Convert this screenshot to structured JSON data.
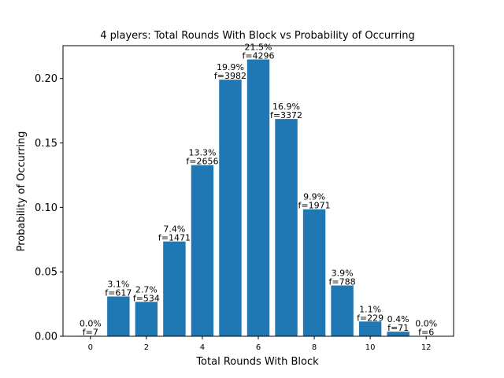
{
  "chart_data": {
    "type": "bar",
    "title": "4 players: Total Rounds With Block vs Probability of Occurring",
    "xlabel": "Total Rounds With Block",
    "ylabel": "Probability of Occurring",
    "x": [
      0,
      1,
      2,
      3,
      4,
      5,
      6,
      7,
      8,
      9,
      10,
      11,
      12
    ],
    "values": [
      0.00035,
      0.03085,
      0.0267,
      0.07355,
      0.1328,
      0.1991,
      0.2148,
      0.1686,
      0.09855,
      0.0394,
      0.01145,
      0.00355,
      0.0003
    ],
    "bar_labels": [
      [
        "0.0%",
        "f=7"
      ],
      [
        "3.1%",
        "f=617"
      ],
      [
        "2.7%",
        "f=534"
      ],
      [
        "7.4%",
        "f=1471"
      ],
      [
        "13.3%",
        "f=2656"
      ],
      [
        "19.9%",
        "f=3982"
      ],
      [
        "21.5%",
        "f=4296"
      ],
      [
        "16.9%",
        "f=3372"
      ],
      [
        "9.9%",
        "f=1971"
      ],
      [
        "3.9%",
        "f=788"
      ],
      [
        "1.1%",
        "f=229"
      ],
      [
        "0.4%",
        "f=71"
      ],
      [
        "0.0%",
        "f=6"
      ]
    ],
    "xticks": [
      0,
      2,
      4,
      6,
      8,
      10,
      12
    ],
    "xtick_labels": [
      "0",
      "2",
      "4",
      "6",
      "8",
      "10",
      "12"
    ],
    "yticks": [
      0.0,
      0.05,
      0.1,
      0.15,
      0.2
    ],
    "ytick_labels": [
      "0.00",
      "0.05",
      "0.10",
      "0.15",
      "0.20"
    ],
    "xlim": [
      -0.98,
      12.98
    ],
    "ylim": [
      0,
      0.2255
    ],
    "grid": false,
    "bar_color": "#1f77b4"
  }
}
